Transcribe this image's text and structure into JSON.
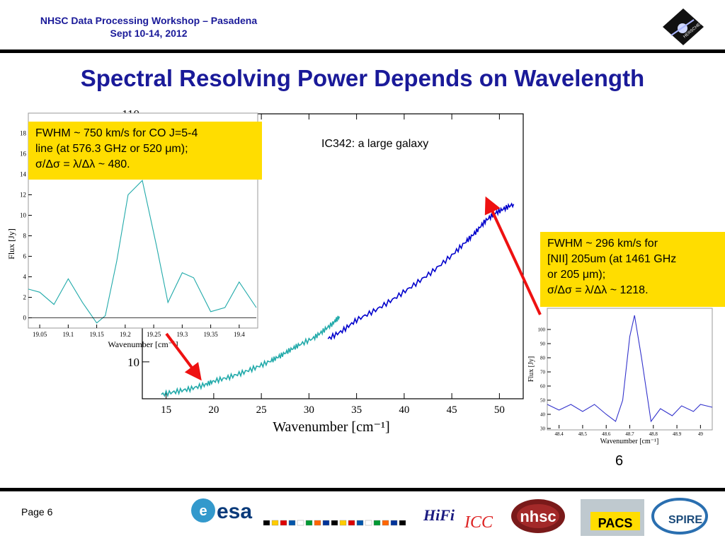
{
  "header": {
    "line1": "NHSC Data Processing Workshop – Pasadena",
    "line2": "Sept 10-14, 2012",
    "logo_text": "HERSCHEL"
  },
  "title": "Spectral Resolving Power Depends on Wavelength",
  "callouts": {
    "left": {
      "line1": "FWHM ~ 750 km/s for CO J=5-4",
      "line2": "line (at 576.3 GHz or 520 μm);",
      "line3": "σ/Δσ = λ/Δλ ~ 480."
    },
    "right": {
      "line1": "FWHM ~ 296 km/s for",
      "line2": "[NII] 205um (at 1461 GHz",
      "line3": "or 205 μm);",
      "line4": "σ/Δσ = λ/Δλ ~ 1218."
    }
  },
  "main_label": "IC342: a large galaxy",
  "slide_number": "6",
  "footer": {
    "page": "Page 6",
    "logos": {
      "esa": "esa",
      "hifi": "HiFi",
      "icc": "ICC",
      "nhsc": "nhsc",
      "pacs": "PACS",
      "spire": "SPIRE"
    }
  },
  "chart_data": [
    {
      "type": "line",
      "xlabel": "Wavenumber [cm⁻¹]",
      "ylabel": "",
      "xlim": [
        12.5,
        52.5
      ],
      "ylim_log": [
        7,
        110
      ],
      "xticks": [
        15,
        20,
        25,
        30,
        35,
        40,
        45,
        50
      ],
      "yticks_shown": [
        10,
        110
      ],
      "series": [
        {
          "color": "#22aaaa",
          "x": [
            14.5,
            16,
            17.5,
            19,
            20,
            21.5,
            23,
            24.5,
            26,
            27,
            28,
            29,
            30.5,
            31.5,
            32.5,
            33.2
          ],
          "y": [
            7.3,
            7.5,
            7.7,
            8.0,
            8.3,
            8.6,
            9.0,
            9.5,
            10.1,
            10.6,
            11.2,
            11.8,
            12.6,
            13.5,
            14.5,
            15.5
          ]
        },
        {
          "color": "#0000cc",
          "x": [
            32.0,
            33.5,
            35,
            37,
            39,
            41,
            43,
            45,
            46.5,
            47.5,
            48.5,
            49.5,
            50.5,
            51.5
          ],
          "y": [
            12.5,
            13.5,
            15,
            16.5,
            18.5,
            21,
            24,
            28,
            32,
            35,
            39,
            42,
            44,
            46
          ]
        }
      ]
    },
    {
      "type": "line",
      "xlabel": "Wavenumber [cm⁻¹]",
      "ylabel": "Flux [Jy]",
      "xlim": [
        19.03,
        19.43
      ],
      "ylim": [
        -1,
        19
      ],
      "xticks": [
        19.05,
        19.1,
        19.15,
        19.2,
        19.25,
        19.3,
        19.35,
        19.4
      ],
      "yticks": [
        0,
        2,
        4,
        6,
        8,
        10,
        12,
        14,
        16,
        18
      ],
      "series": [
        {
          "color": "#22aaaa",
          "x": [
            19.03,
            19.05,
            19.075,
            19.1,
            19.125,
            19.15,
            19.165,
            19.185,
            19.205,
            19.23,
            19.255,
            19.275,
            19.3,
            19.32,
            19.35,
            19.375,
            19.4,
            19.43
          ],
          "y": [
            2.8,
            2.5,
            1.3,
            3.8,
            1.5,
            -0.5,
            0.2,
            5.5,
            12.0,
            13.4,
            7.0,
            1.5,
            4.4,
            3.9,
            0.6,
            1.0,
            3.5,
            1.0
          ]
        }
      ]
    },
    {
      "type": "line",
      "xlabel": "Wavenumber [cm⁻¹]",
      "ylabel": "Flux [Jy]",
      "xlim": [
        48.35,
        49.05
      ],
      "ylim": [
        30,
        113
      ],
      "xticks": [
        48.4,
        48.5,
        48.6,
        48.7,
        48.8,
        48.9,
        49.0
      ],
      "yticks": [
        30,
        40,
        50,
        60,
        70,
        80,
        90,
        100
      ],
      "series": [
        {
          "color": "#3333cc",
          "x": [
            48.35,
            48.4,
            48.45,
            48.5,
            48.55,
            48.6,
            48.64,
            48.67,
            48.7,
            48.72,
            48.75,
            48.79,
            48.83,
            48.88,
            48.92,
            48.97,
            49.0,
            49.05
          ],
          "y": [
            47,
            43,
            47,
            42,
            47,
            40,
            35,
            50,
            95,
            110,
            80,
            35,
            44,
            39,
            46,
            42,
            47,
            45
          ]
        }
      ]
    }
  ]
}
